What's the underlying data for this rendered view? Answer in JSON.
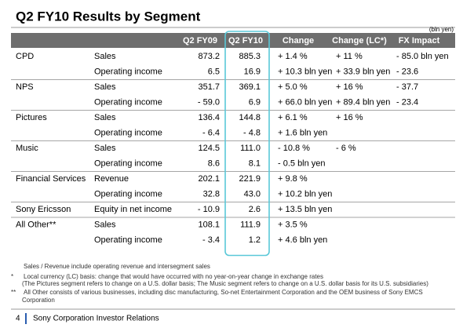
{
  "header": {
    "title": "Q2 FY10 Results by Segment",
    "unit": "(bln yen)"
  },
  "table": {
    "columns": [
      "Q2 FY09",
      "Q2 FY10",
      "Change",
      "Change (LC*)",
      "FX Impact"
    ],
    "segments": [
      {
        "name": "CPD",
        "rows": [
          [
            "Sales",
            "873.2",
            "885.3",
            "+ 1.4 %",
            "+ 11 %",
            "- 85.0 bln yen"
          ],
          [
            "Operating income",
            "6.5",
            "16.9",
            "+ 10.3 bln yen",
            "+ 33.9 bln yen",
            "- 23.6"
          ]
        ]
      },
      {
        "name": "NPS",
        "rows": [
          [
            "Sales",
            "351.7",
            "369.1",
            "+ 5.0 %",
            "+ 16 %",
            "- 37.7"
          ],
          [
            "Operating income",
            "- 59.0",
            "6.9",
            "+ 66.0 bln yen",
            "+ 89.4 bln yen",
            "- 23.4"
          ]
        ]
      },
      {
        "name": "Pictures",
        "rows": [
          [
            "Sales",
            "136.4",
            "144.8",
            "+ 6.1 %",
            "+ 16 %",
            null
          ],
          [
            "Operating income",
            "- 6.4",
            "- 4.8",
            "+ 1.6 bln yen",
            null,
            null
          ]
        ]
      },
      {
        "name": "Music",
        "rows": [
          [
            "Sales",
            "124.5",
            "111.0",
            "- 10.8 %",
            "- 6 %",
            null
          ],
          [
            "Operating income",
            "8.6",
            "8.1",
            "- 0.5 bln yen",
            null,
            null
          ]
        ]
      },
      {
        "name": "Financial Services",
        "rows": [
          [
            "Revenue",
            "202.1",
            "221.9",
            "+ 9.8 %",
            null,
            null
          ],
          [
            "Operating income",
            "32.8",
            "43.0",
            "+ 10.2 bln yen",
            null,
            null
          ]
        ]
      },
      {
        "name": "Sony Ericsson",
        "rows": [
          [
            "Equity in net income",
            "- 10.9",
            "2.6",
            "+ 13.5 bln yen",
            null,
            null
          ]
        ]
      },
      {
        "name": "All Other**",
        "rows": [
          [
            "Sales",
            "108.1",
            "111.9",
            "+ 3.5 %",
            null,
            null
          ],
          [
            "Operating income",
            "- 3.4",
            "1.2",
            "+ 4.6 bln yen",
            null,
            null
          ]
        ]
      }
    ]
  },
  "notes": [
    {
      "text": "Sales / Revenue include operating revenue and intersegment sales"
    },
    {
      "mark": "*",
      "text": "Local currency (LC) basis: change that would have occurred with no year-on-year change in exchange rates"
    },
    {
      "text": "(The Pictures segment refers to change on a U.S. dollar basis; The Music segment refers to change on a U.S. dollar basis for its U.S. subsidiaries)"
    },
    {
      "mark": "**",
      "text": "All Other consists of various businesses, including disc manufacturing, So-net Entertainment Corporation and the OEM business of Sony EMCS"
    },
    {
      "text": "Corporation"
    }
  ],
  "footer": {
    "page": "4",
    "text": "Sony Corporation Investor Relations"
  }
}
